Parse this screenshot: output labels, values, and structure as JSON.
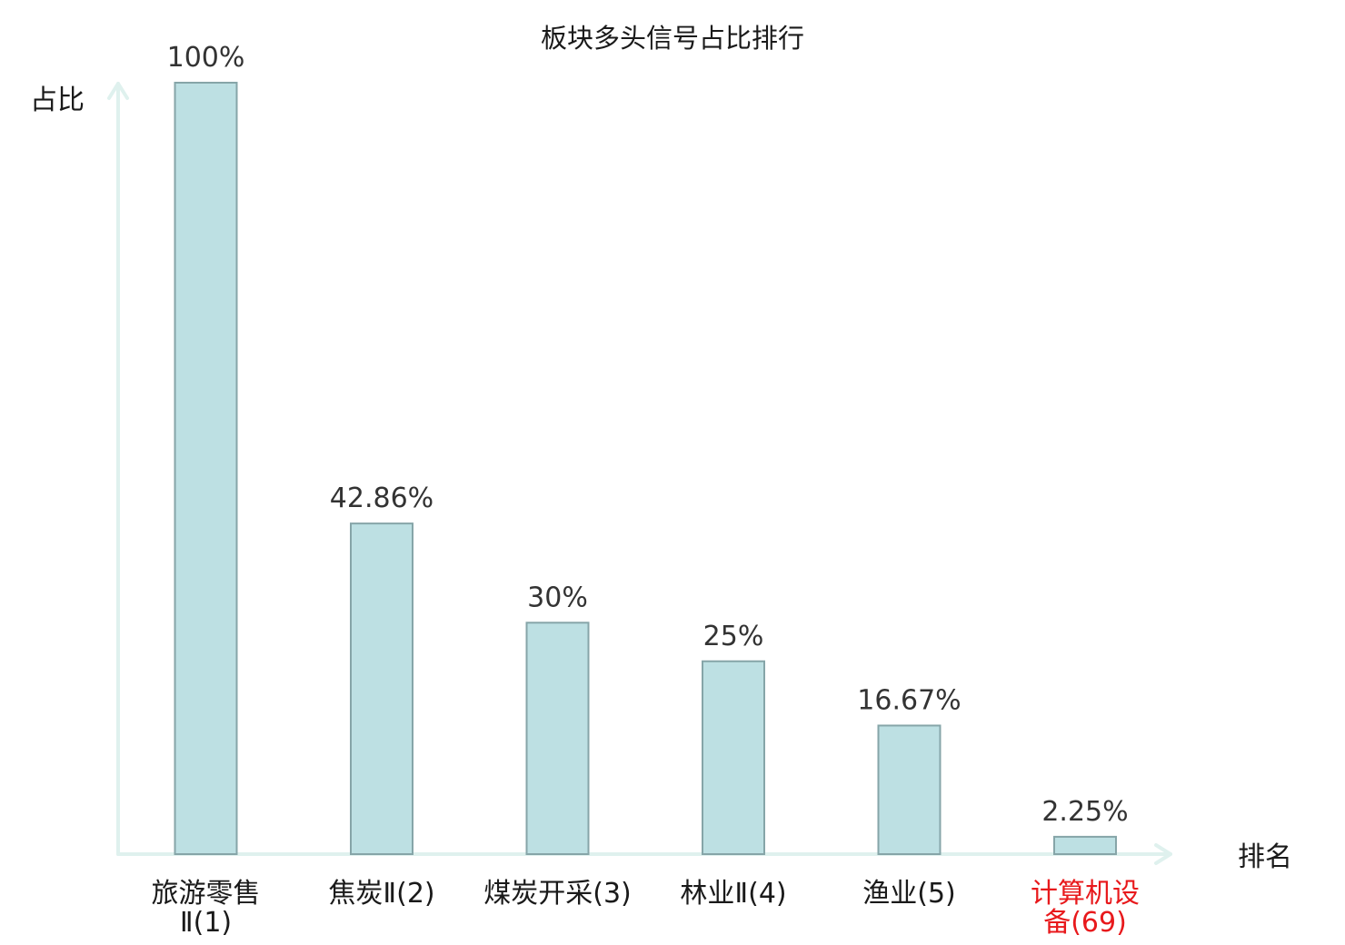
{
  "chart_data": {
    "type": "bar",
    "title": "板块多头信号占比排行",
    "ylabel": "占比",
    "xlabel": "排名",
    "ylim": [
      0,
      100
    ],
    "grid": false,
    "categories": [
      {
        "lines": [
          "旅游零售",
          "Ⅱ(1)"
        ],
        "highlight": false
      },
      {
        "lines": [
          "焦炭Ⅱ(2)"
        ],
        "highlight": false
      },
      {
        "lines": [
          "煤炭开采(3)"
        ],
        "highlight": false
      },
      {
        "lines": [
          "林业Ⅱ(4)"
        ],
        "highlight": false
      },
      {
        "lines": [
          "渔业(5)"
        ],
        "highlight": false
      },
      {
        "lines": [
          "计算机设",
          "备(69)"
        ],
        "highlight": true
      }
    ],
    "values": [
      100,
      42.86,
      30,
      25,
      16.67,
      2.25
    ],
    "value_labels": [
      "100%",
      "42.86%",
      "30%",
      "25%",
      "16.67%",
      "2.25%"
    ],
    "colors": {
      "bar_fill": "#bde0e3",
      "bar_stroke": "#86a5a8",
      "axis": "#dff1ee",
      "highlight_label": "#e8191c",
      "normal_label": "#1a1a1a"
    }
  }
}
